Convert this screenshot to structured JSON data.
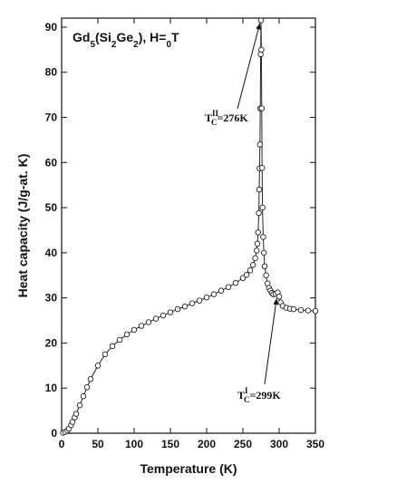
{
  "chart_data": {
    "type": "line",
    "title": "Gd5(Si2Ge2), H=0T",
    "x_label": "Temperature (K)",
    "y_label": "Heat capacity (J/g-at. K)",
    "xlim": [
      0,
      350
    ],
    "ylim": [
      0,
      92
    ],
    "xticks": [
      0,
      50,
      100,
      150,
      200,
      250,
      300,
      350
    ],
    "yticks": [
      0,
      10,
      20,
      30,
      40,
      50,
      60,
      70,
      80,
      90
    ],
    "series": [
      {
        "name": "Gd5(Si2Ge2)",
        "color": "#222222",
        "x": [
          2,
          5,
          8,
          10,
          13,
          15,
          18,
          20,
          25,
          30,
          35,
          40,
          50,
          60,
          70,
          80,
          90,
          100,
          110,
          120,
          130,
          140,
          150,
          160,
          170,
          180,
          190,
          200,
          210,
          220,
          230,
          240,
          250,
          255,
          260,
          264,
          267,
          269,
          270,
          271,
          272,
          272.5,
          273,
          273.5,
          274,
          274.5,
          275,
          275.5,
          276,
          276.5,
          277,
          278,
          279,
          280,
          282,
          284,
          286,
          288,
          290,
          292,
          295,
          298,
          300,
          302,
          305,
          310,
          315,
          320,
          330,
          340,
          350
        ],
        "values": [
          0.1,
          0.3,
          0.6,
          1.0,
          1.8,
          2.5,
          3.5,
          4.3,
          6.2,
          8.2,
          10.2,
          12.0,
          15.0,
          17.5,
          19.3,
          20.7,
          21.9,
          22.9,
          23.8,
          24.6,
          25.4,
          26.1,
          26.8,
          27.5,
          28.1,
          28.8,
          29.4,
          30.1,
          30.8,
          31.6,
          32.4,
          33.3,
          34.4,
          35.1,
          36.1,
          37.3,
          38.8,
          40.5,
          42.0,
          44.5,
          48.8,
          54.0,
          58.7,
          64.0,
          72.0,
          84.0,
          91.5,
          85.0,
          72.0,
          58.8,
          50.0,
          43.5,
          40.0,
          37.0,
          35.0,
          33.2,
          32.2,
          31.6,
          31.1,
          30.8,
          30.9,
          31.2,
          30.3,
          29.0,
          28.2,
          27.8,
          27.6,
          27.5,
          27.3,
          27.2,
          27.1
        ]
      }
    ],
    "annotations": [
      {
        "base": "T",
        "sup": "II",
        "sub": "C",
        "text": "=276K",
        "x": 276,
        "y": 91.5
      },
      {
        "base": "T",
        "sup": "I",
        "sub": "C",
        "text": "=299K",
        "x": 299,
        "y": 30.5
      }
    ]
  }
}
